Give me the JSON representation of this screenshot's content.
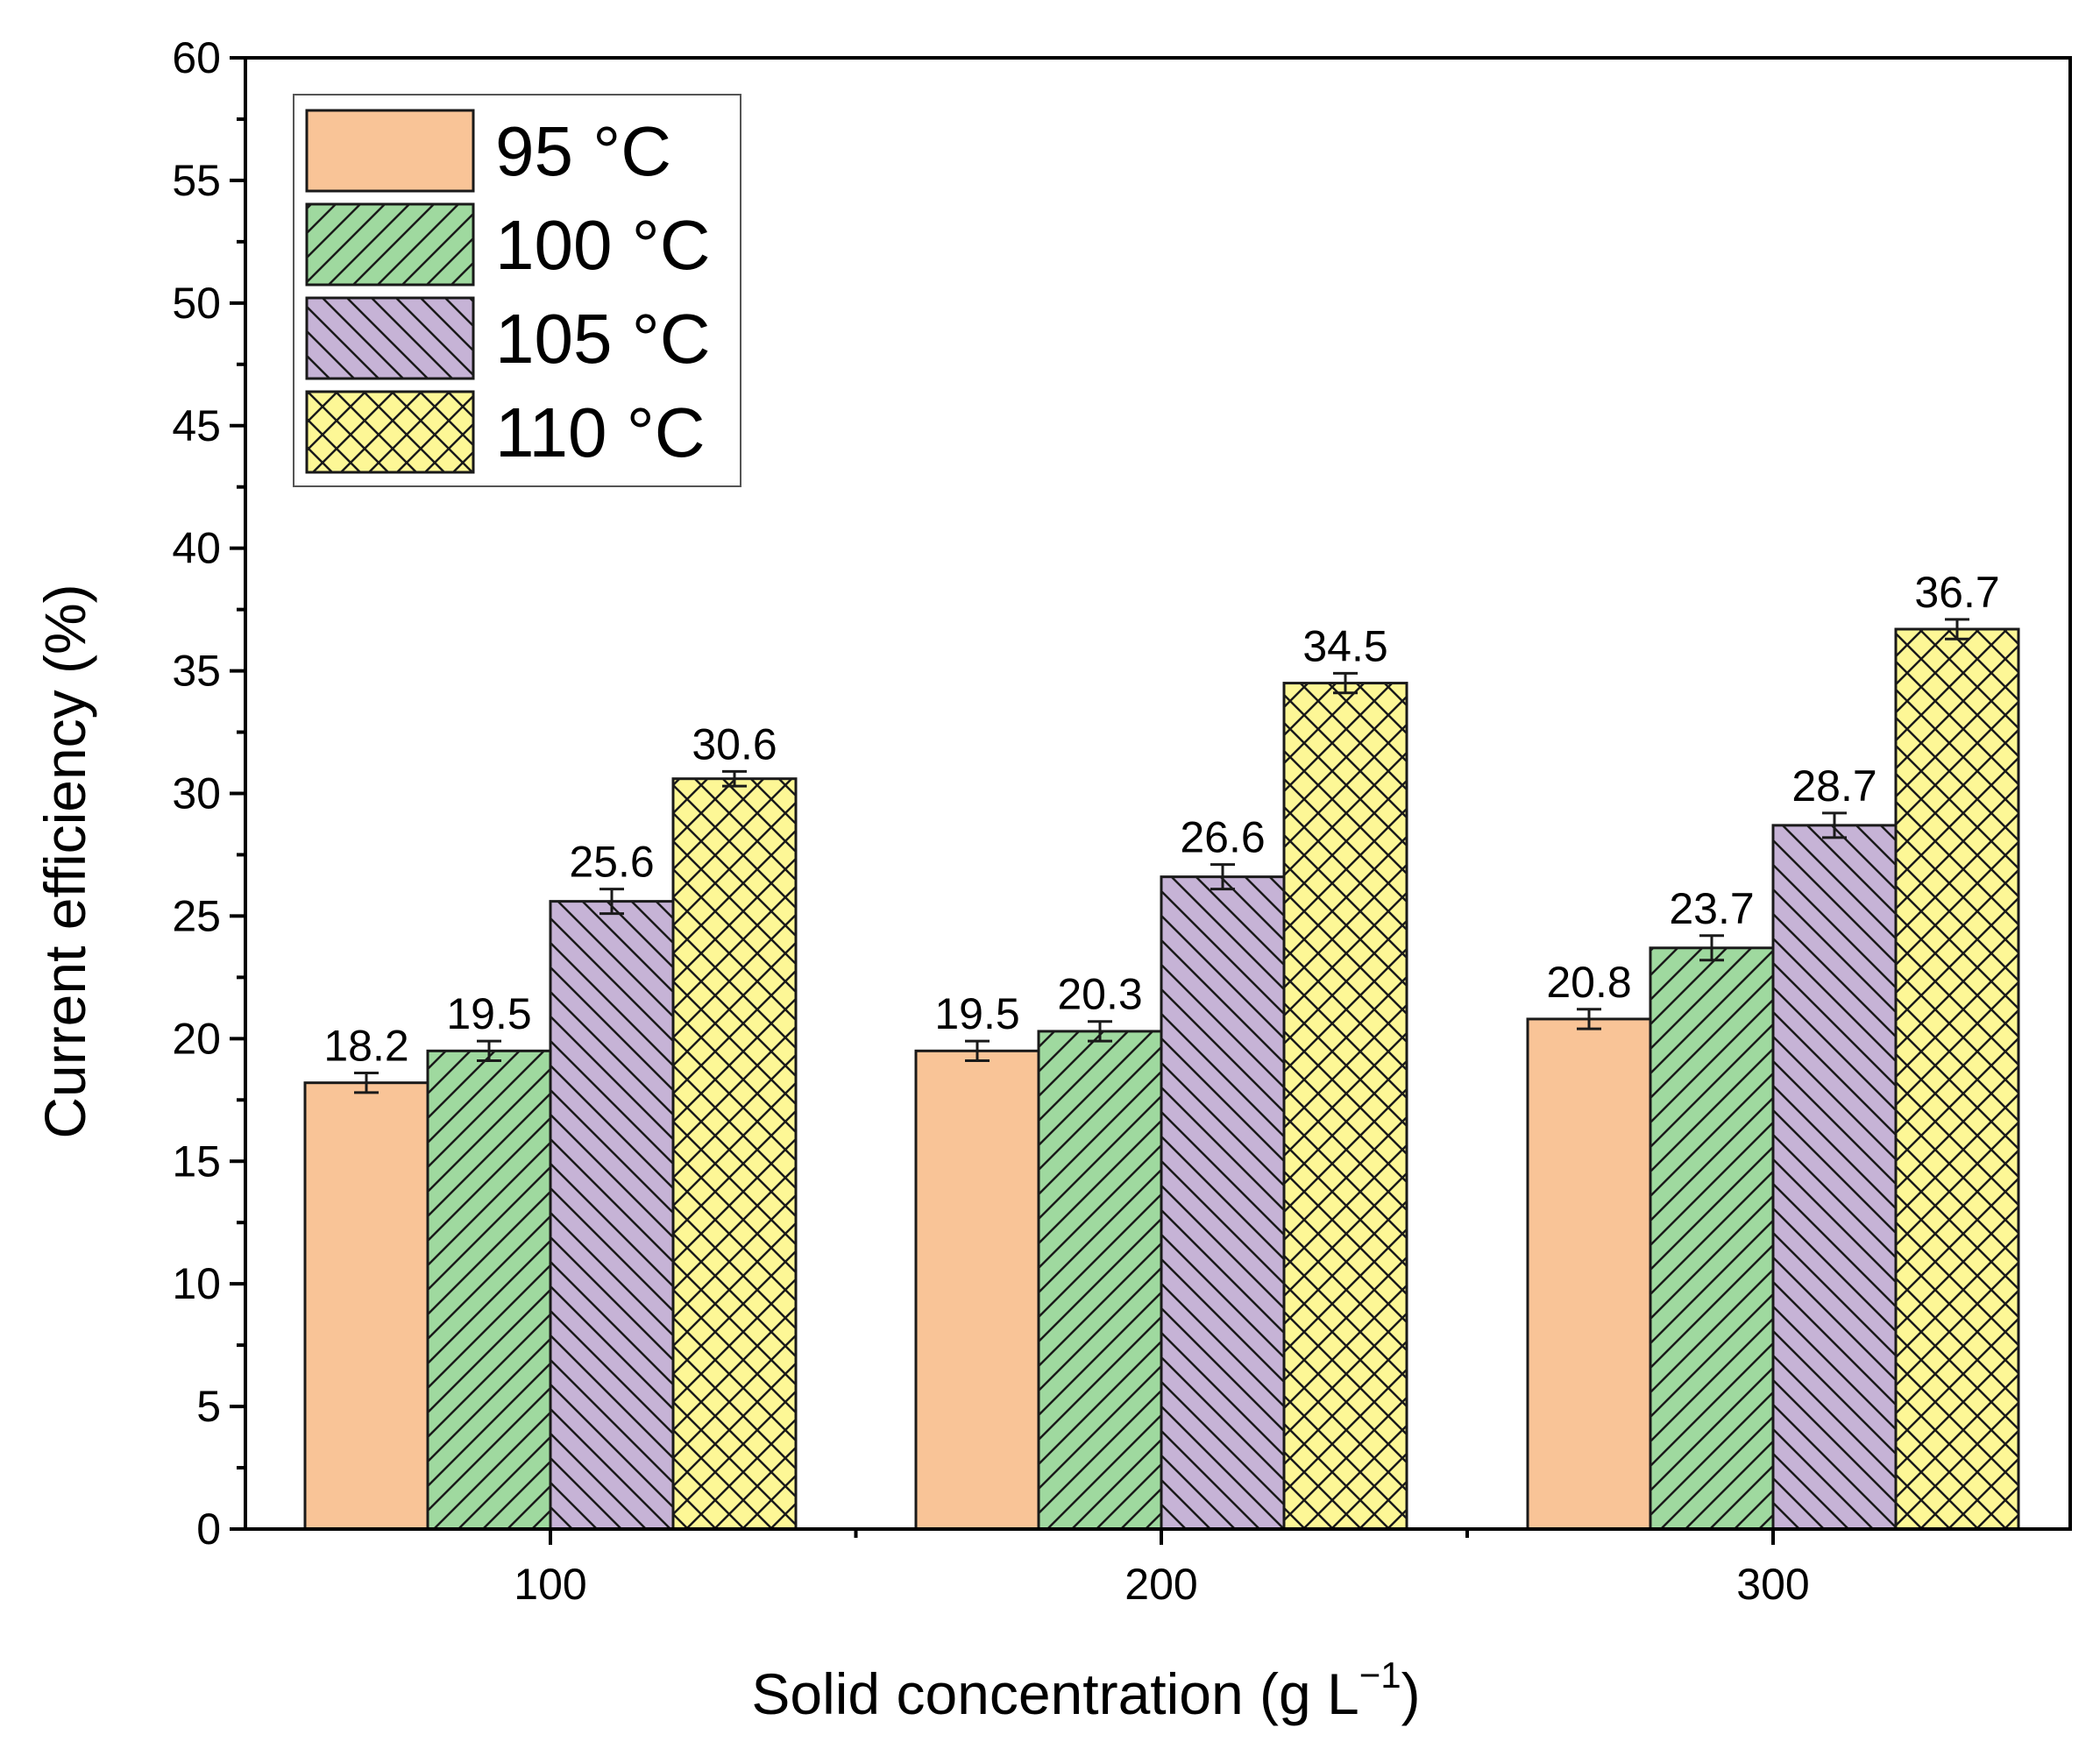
{
  "chart_data": {
    "type": "bar",
    "xlabel": "Solid concentration (g L",
    "xlabel_sup": "−1",
    "xlabel_close": ")",
    "ylabel": "Current efficiency (%)",
    "ylim": [
      0,
      60
    ],
    "yticks": [
      0,
      5,
      10,
      15,
      20,
      25,
      30,
      35,
      40,
      45,
      50,
      55,
      60
    ],
    "categories": [
      "100",
      "200",
      "300"
    ],
    "legend_position": "top-left",
    "grid": false,
    "series": [
      {
        "name": "95 °C",
        "values": [
          18.2,
          19.5,
          20.8
        ],
        "errors": [
          0.4,
          0.4,
          0.4
        ],
        "labels": [
          "18.2",
          "19.5",
          "20.8"
        ],
        "color": "#f9c497",
        "pattern": "none"
      },
      {
        "name": "100 °C",
        "values": [
          19.5,
          20.3,
          23.7
        ],
        "errors": [
          0.4,
          0.4,
          0.5
        ],
        "labels": [
          "19.5",
          "20.3",
          "23.7"
        ],
        "color": "#9fd99f",
        "pattern": "forward-diagonal"
      },
      {
        "name": "105 °C",
        "values": [
          25.6,
          26.6,
          28.7
        ],
        "errors": [
          0.5,
          0.5,
          0.5
        ],
        "labels": [
          "25.6",
          "26.6",
          "28.7"
        ],
        "color": "#c6b3d6",
        "pattern": "back-diagonal"
      },
      {
        "name": "110 °C",
        "values": [
          30.6,
          34.5,
          36.7
        ],
        "errors": [
          0.3,
          0.4,
          0.4
        ],
        "labels": [
          "30.6",
          "34.5",
          "36.7"
        ],
        "color": "#fdf796",
        "pattern": "crosshatch"
      }
    ]
  }
}
